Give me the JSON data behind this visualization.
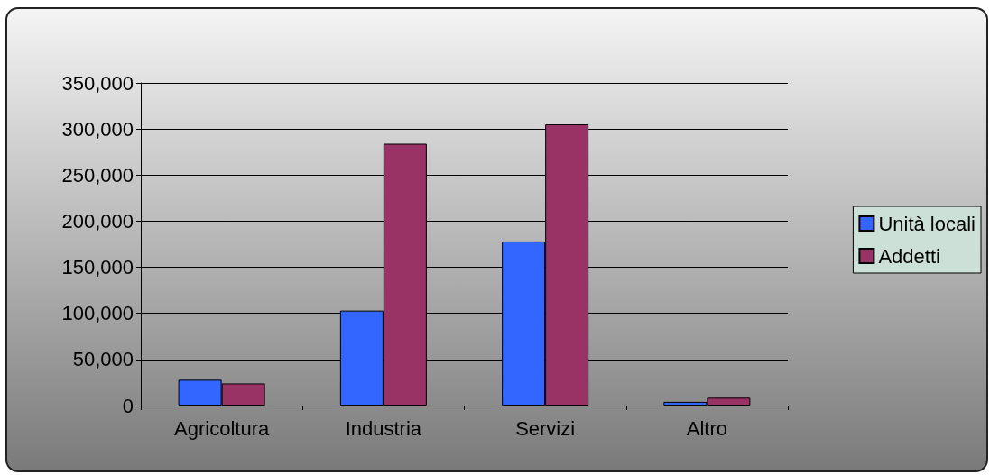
{
  "chart_data": {
    "type": "bar",
    "categories": [
      "Agricoltura",
      "Industria",
      "Servizi",
      "Altro"
    ],
    "series": [
      {
        "name": "Unità locali",
        "color": "#3366ff",
        "values": [
          28000,
          103000,
          178000,
          4000
        ]
      },
      {
        "name": "Addetti",
        "color": "#993366",
        "values": [
          24000,
          284000,
          305000,
          8500
        ]
      }
    ],
    "ylim": [
      0,
      350000
    ],
    "yticks": [
      {
        "value": 0,
        "label": "0"
      },
      {
        "value": 50000,
        "label": "50,000"
      },
      {
        "value": 100000,
        "label": "100,000"
      },
      {
        "value": 150000,
        "label": "150,000"
      },
      {
        "value": 200000,
        "label": "200,000"
      },
      {
        "value": 250000,
        "label": "250,000"
      },
      {
        "value": 300000,
        "label": "300,000"
      },
      {
        "value": 350000,
        "label": "350,000"
      }
    ],
    "grid": "y",
    "legend": "right"
  }
}
